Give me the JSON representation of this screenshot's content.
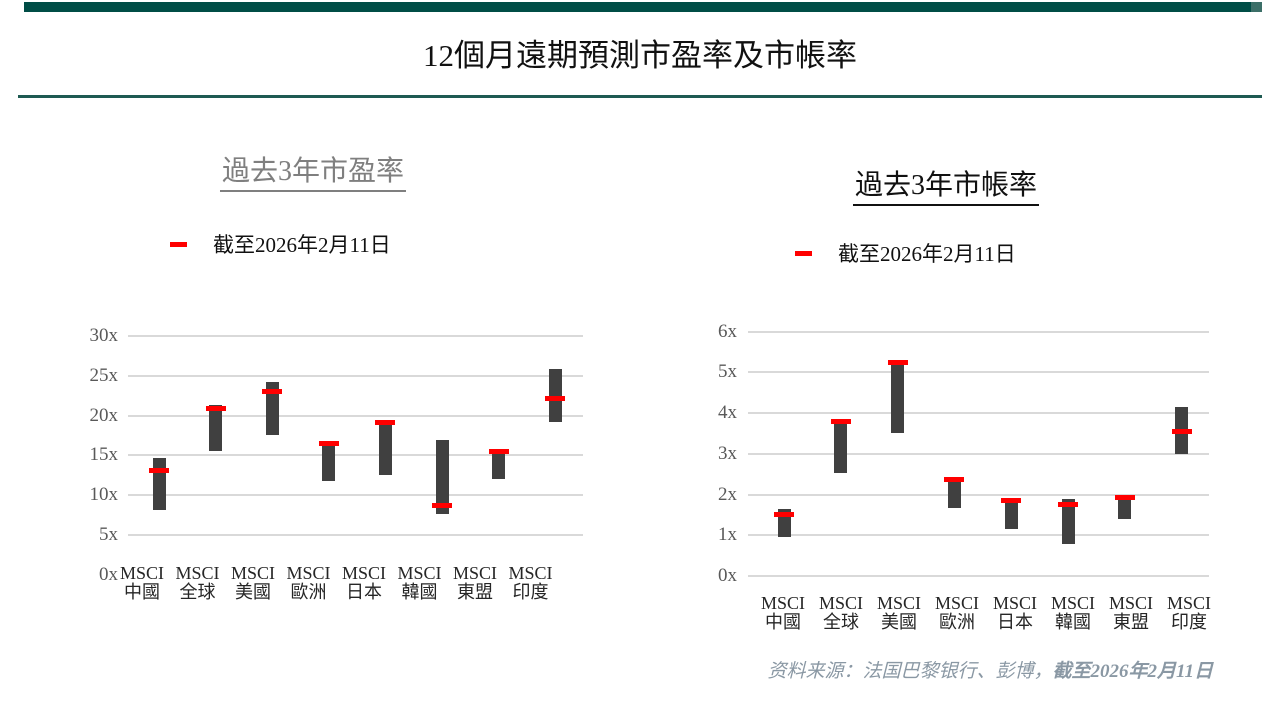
{
  "page": {
    "title": "12個月遠期預測市盈率及市帳率",
    "source_note_normal": "资料来源：法国巴黎银行、彭博，",
    "source_note_bold": "截至2026年2月11日"
  },
  "colors": {
    "brand_green": "#004d46",
    "divider_green": "#1e5a52",
    "bar_grey": "#404040",
    "marker_red": "#ff0000",
    "gridline_grey": "#d9d9d9",
    "axis_text_grey": "#595959"
  },
  "chart_data": [
    {
      "type": "range-bar",
      "title": "過去3年市盈率",
      "legend": "截至2026年2月11日",
      "unit_suffix": "x",
      "ylim": [
        0,
        30
      ],
      "yticks": [
        0,
        5,
        10,
        15,
        20,
        25,
        30
      ],
      "grid_on": true,
      "legend_position": "top",
      "categories": [
        [
          "MSCI",
          "中國"
        ],
        [
          "MSCI",
          "全球"
        ],
        [
          "MSCI",
          "美國"
        ],
        [
          "MSCI",
          "歐洲"
        ],
        [
          "MSCI",
          "日本"
        ],
        [
          "MSCI",
          "韓國"
        ],
        [
          "MSCI",
          "東盟"
        ],
        [
          "MSCI",
          "印度"
        ]
      ],
      "bars": [
        {
          "low": 8.1,
          "high": 14.7,
          "current": 13.1
        },
        {
          "low": 15.6,
          "high": 21.4,
          "current": 20.9
        },
        {
          "low": 17.6,
          "high": 24.2,
          "current": 23.0
        },
        {
          "low": 11.8,
          "high": 16.3,
          "current": 16.5
        },
        {
          "low": 12.5,
          "high": 19.0,
          "current": 19.1
        },
        {
          "low": 7.6,
          "high": 17.0,
          "current": 8.7
        },
        {
          "low": 12.0,
          "high": 15.3,
          "current": 15.5
        },
        {
          "low": 19.2,
          "high": 25.8,
          "current": 22.1
        }
      ]
    },
    {
      "type": "range-bar",
      "title": "過去3年市帳率",
      "legend": "截至2026年2月11日",
      "unit_suffix": "x",
      "ylim": [
        0,
        6
      ],
      "yticks": [
        0,
        1,
        2,
        3,
        4,
        5,
        6
      ],
      "grid_on": true,
      "legend_position": "top",
      "categories": [
        [
          "MSCI",
          "中國"
        ],
        [
          "MSCI",
          "全球"
        ],
        [
          "MSCI",
          "美國"
        ],
        [
          "MSCI",
          "歐洲"
        ],
        [
          "MSCI",
          "日本"
        ],
        [
          "MSCI",
          "韓國"
        ],
        [
          "MSCI",
          "東盟"
        ],
        [
          "MSCI",
          "印度"
        ]
      ],
      "bars": [
        {
          "low": 0.95,
          "high": 1.65,
          "current": 1.5
        },
        {
          "low": 2.52,
          "high": 3.8,
          "current": 3.8
        },
        {
          "low": 3.5,
          "high": 5.2,
          "current": 5.25
        },
        {
          "low": 1.68,
          "high": 2.3,
          "current": 2.37
        },
        {
          "low": 1.15,
          "high": 1.82,
          "current": 1.85
        },
        {
          "low": 0.78,
          "high": 1.9,
          "current": 1.75
        },
        {
          "low": 1.4,
          "high": 1.88,
          "current": 1.92
        },
        {
          "low": 3.0,
          "high": 4.15,
          "current": 3.55
        }
      ]
    }
  ]
}
